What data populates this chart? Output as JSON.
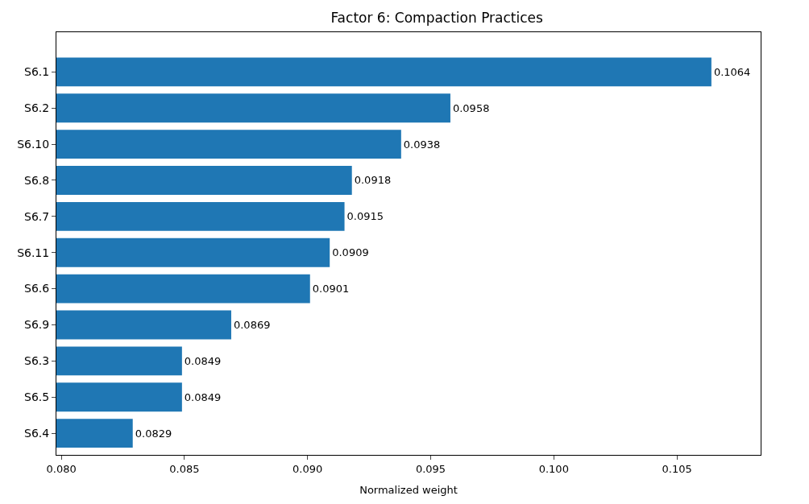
{
  "chart_data": {
    "type": "bar",
    "orientation": "horizontal",
    "title": "Factor 6: Compaction Practices",
    "xlabel": "Normalized weight",
    "categories": [
      "S6.1",
      "S6.2",
      "S6.10",
      "S6.8",
      "S6.7",
      "S6.11",
      "S6.6",
      "S6.9",
      "S6.3",
      "S6.5",
      "S6.4"
    ],
    "values": [
      0.1064,
      0.0958,
      0.0938,
      0.0918,
      0.0915,
      0.0909,
      0.0901,
      0.0869,
      0.0849,
      0.0849,
      0.0829
    ],
    "color": "#1f77b4",
    "data_labels": true,
    "xlim": [
      0.0798,
      0.1084
    ],
    "xticks": [
      {
        "value": 0.08,
        "label": "0.080"
      },
      {
        "value": 0.085,
        "label": "0.085"
      },
      {
        "value": 0.09,
        "label": "0.090"
      },
      {
        "value": 0.095,
        "label": "0.095"
      },
      {
        "value": 0.1,
        "label": "0.100"
      },
      {
        "value": 0.105,
        "label": "0.105"
      }
    ],
    "legend": false
  }
}
